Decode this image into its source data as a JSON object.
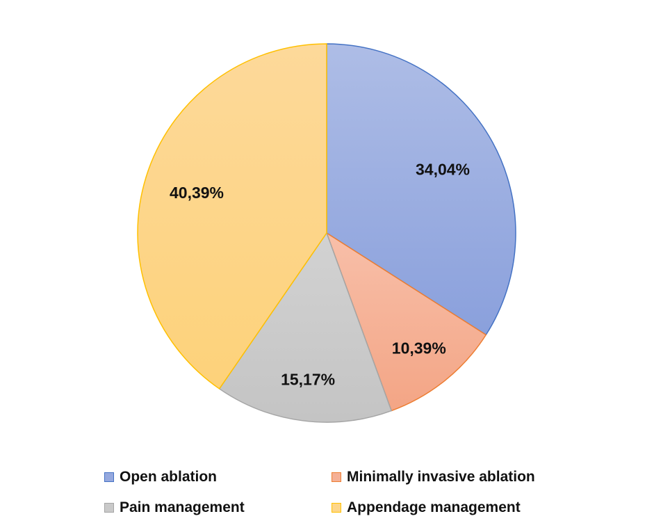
{
  "chart_data": {
    "type": "pie",
    "title": "",
    "start_angle": "12 o'clock, clockwise",
    "legend_position": "bottom",
    "slices": [
      {
        "label": "Open ablation",
        "value": 34.04,
        "display": "34,04%",
        "fill": "#95a8de",
        "stroke": "#4472c4"
      },
      {
        "label": "Minimally invasive ablation",
        "value": 10.39,
        "display": "10,39%",
        "fill": "#f5b096",
        "stroke": "#ed7d31"
      },
      {
        "label": "Pain management",
        "value": 15.17,
        "display": "15,17%",
        "fill": "#c9c9c9",
        "stroke": "#a5a5a5"
      },
      {
        "label": "Appendage management",
        "value": 40.39,
        "display": "40,39%",
        "fill": "#fdd68a",
        "stroke": "#ffc000"
      }
    ]
  }
}
